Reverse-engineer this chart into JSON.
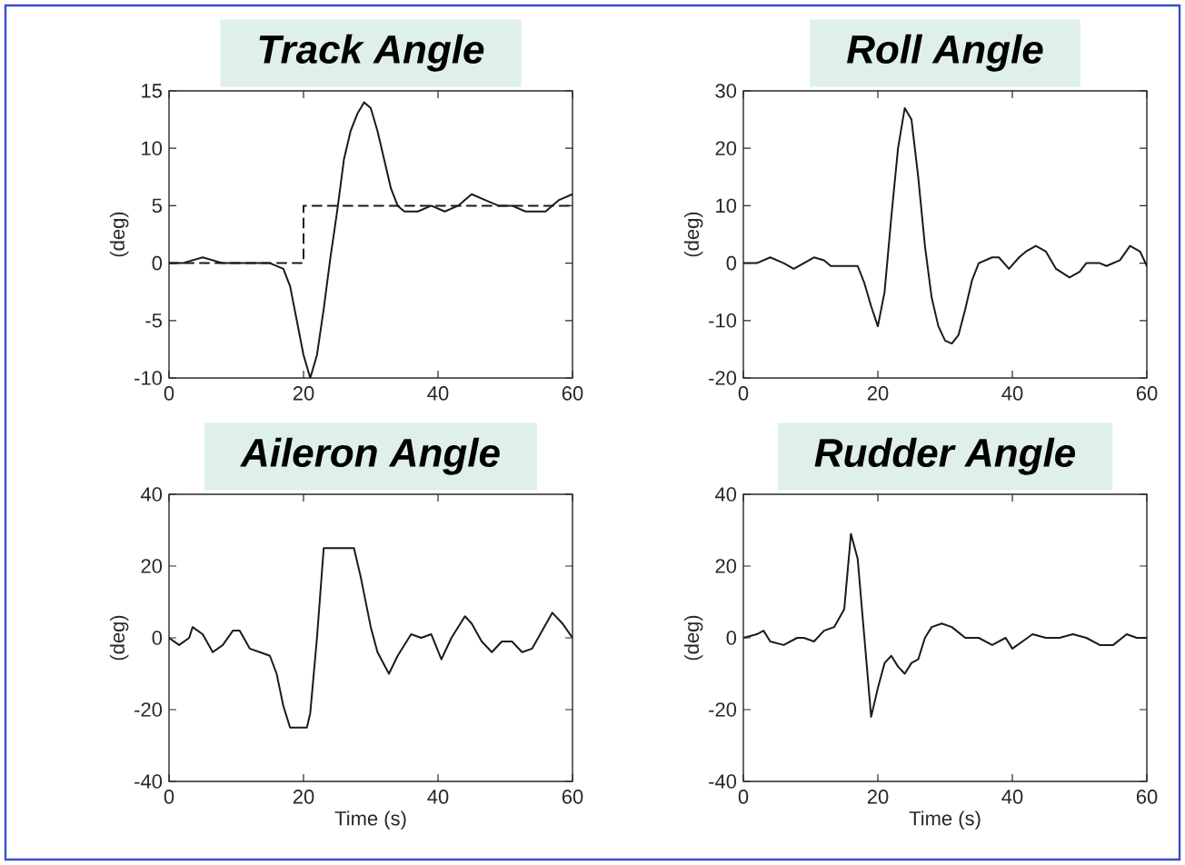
{
  "chart_data": [
    {
      "type": "line",
      "title": "Track Angle",
      "ylabel": "(deg)",
      "xlim": [
        0,
        60
      ],
      "xticks": [
        0,
        20,
        40,
        60
      ],
      "ylim": [
        -10,
        15
      ],
      "yticks": [
        -10,
        -5,
        0,
        5,
        10,
        15
      ],
      "series": [
        {
          "color": "#1a1a1a",
          "x": [
            0,
            2,
            5,
            8,
            12,
            15,
            17,
            18,
            19,
            20,
            21,
            22,
            23,
            24,
            25,
            26,
            27,
            28,
            29,
            30,
            31,
            32,
            33,
            34,
            35,
            37,
            39,
            41,
            43,
            45,
            47,
            49,
            51,
            53,
            55,
            56,
            58,
            60
          ],
          "values": [
            0,
            0,
            0.5,
            0,
            0,
            0,
            -0.5,
            -2,
            -5,
            -8,
            -10,
            -8,
            -4,
            0.5,
            4.5,
            9,
            11.5,
            13,
            14,
            13.5,
            11.5,
            9,
            6.5,
            5,
            4.5,
            4.5,
            5,
            4.5,
            5,
            6,
            5.5,
            5,
            5,
            4.5,
            4.5,
            4.5,
            5.5,
            6
          ]
        },
        {
          "color": "#1a1a1a",
          "line_style": "dashed",
          "x": [
            0,
            20,
            20,
            60
          ],
          "values": [
            0,
            0,
            5,
            5
          ]
        }
      ]
    },
    {
      "type": "line",
      "title": "Roll Angle",
      "ylabel": "(deg)",
      "xlim": [
        0,
        60
      ],
      "xticks": [
        0,
        20,
        40,
        60
      ],
      "ylim": [
        -20,
        30
      ],
      "yticks": [
        -20,
        -10,
        0,
        10,
        20,
        30
      ],
      "series": [
        {
          "color": "#1a1a1a",
          "x": [
            0,
            2,
            4,
            6,
            7.5,
            9,
            10.5,
            12,
            13,
            15,
            17,
            18,
            19,
            20,
            21,
            22,
            23,
            24,
            25,
            26,
            27,
            28,
            29,
            30,
            31,
            32,
            33,
            34,
            35,
            37,
            38,
            39.5,
            41,
            42,
            43.5,
            45,
            46.5,
            48.5,
            50,
            51,
            53,
            54,
            56,
            57.5,
            59,
            60
          ],
          "values": [
            0,
            0,
            1,
            0,
            -1,
            0,
            1,
            0.5,
            -0.5,
            -0.5,
            -0.5,
            -3.5,
            -7.5,
            -11,
            -5,
            8,
            20,
            27,
            25,
            15,
            3,
            -6,
            -11,
            -13.5,
            -14,
            -12.5,
            -8,
            -3,
            0,
            1,
            1,
            -1,
            1,
            2,
            3,
            2,
            -1,
            -2.5,
            -1.5,
            0,
            0,
            -0.5,
            0.5,
            3,
            2,
            -0.5
          ]
        }
      ]
    },
    {
      "type": "line",
      "title": "Aileron Angle",
      "xlabel": "Time (s)",
      "ylabel": "(deg)",
      "xlim": [
        0,
        60
      ],
      "xticks": [
        0,
        20,
        40,
        60
      ],
      "ylim": [
        -40,
        40
      ],
      "yticks": [
        -40,
        -20,
        0,
        20,
        40
      ],
      "series": [
        {
          "color": "#1a1a1a",
          "x": [
            0,
            1.5,
            3,
            3.5,
            5,
            6.5,
            8,
            9.5,
            10.5,
            12,
            13.5,
            15,
            16,
            17,
            18,
            20.5,
            21,
            22,
            23,
            27.5,
            28.5,
            30,
            31,
            32.7,
            34,
            36,
            37.5,
            39,
            40.5,
            42,
            44,
            45,
            46.5,
            48,
            49.5,
            51,
            52.5,
            54,
            55.5,
            57,
            58.5,
            60
          ],
          "values": [
            0,
            -2,
            0,
            3,
            1,
            -4,
            -2,
            2,
            2,
            -3,
            -4,
            -5,
            -10,
            -19,
            -25,
            -25,
            -21,
            0,
            25,
            25,
            17,
            3,
            -4,
            -10,
            -5,
            1,
            0,
            1,
            -6,
            0,
            6,
            4,
            -1,
            -4,
            -1,
            -1,
            -4,
            -3,
            2,
            7,
            4,
            0
          ]
        }
      ]
    },
    {
      "type": "line",
      "title": "Rudder Angle",
      "xlabel": "Time (s)",
      "ylabel": "(deg)",
      "xlim": [
        0,
        60
      ],
      "xticks": [
        0,
        20,
        40,
        60
      ],
      "ylim": [
        -40,
        40
      ],
      "yticks": [
        -40,
        -20,
        0,
        20,
        40
      ],
      "series": [
        {
          "color": "#1a1a1a",
          "x": [
            0,
            2,
            3,
            4,
            6,
            8,
            9,
            10.5,
            12,
            13.5,
            15,
            16,
            17,
            18,
            19,
            20,
            21,
            22,
            23,
            24,
            25,
            26,
            27,
            28,
            29.5,
            31,
            33,
            35,
            37,
            39,
            40,
            41.5,
            43,
            45,
            47,
            49,
            51,
            53,
            55,
            57,
            58.5,
            60
          ],
          "values": [
            0,
            1,
            2,
            -1,
            -2,
            0,
            0,
            -1,
            2,
            3,
            8,
            29,
            22,
            0,
            -22,
            -14,
            -7,
            -5,
            -8,
            -10,
            -7,
            -6,
            0,
            3,
            4,
            3,
            0,
            0,
            -2,
            0,
            -3,
            -1,
            1,
            0,
            0,
            1,
            0,
            -2,
            -2,
            1,
            0,
            0
          ]
        }
      ]
    }
  ]
}
